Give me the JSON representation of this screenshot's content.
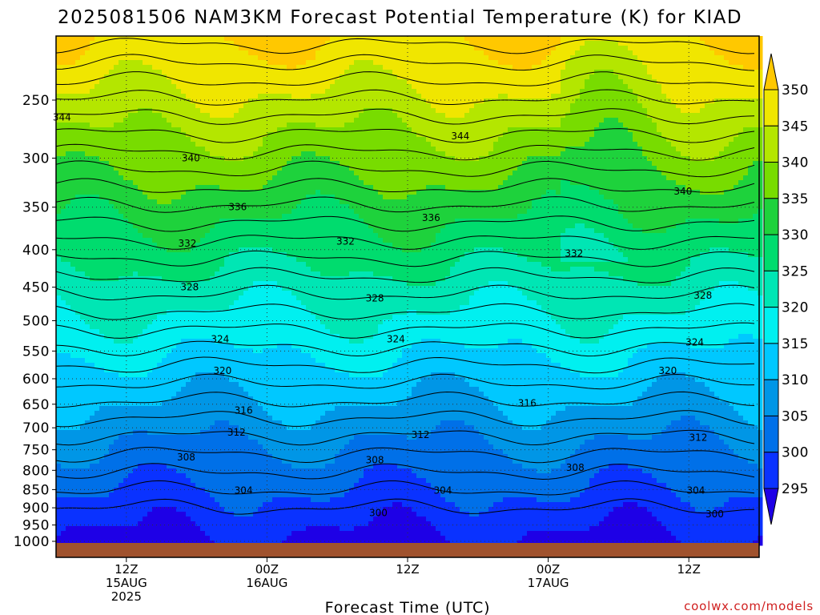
{
  "chart_data": {
    "type": "heatmap",
    "title": "2025081506 NAM3KM Forecast Potential Temperature (K) for KIAD",
    "xlabel": "Forecast Time (UTC)",
    "credit": "coolwx.com/models",
    "y_axis": {
      "scale": "log-pressure",
      "reversed": true,
      "ticks": [
        "250",
        "300",
        "350",
        "400",
        "450",
        "500",
        "550",
        "600",
        "650",
        "700",
        "750",
        "800",
        "850",
        "900",
        "950",
        "1000"
      ],
      "range": [
        200,
        1020
      ]
    },
    "x_axis": {
      "tick_labels": [
        [
          "12Z",
          "15AUG",
          "2025"
        ],
        [
          "00Z",
          "16AUG"
        ],
        [
          "12Z"
        ],
        [
          "00Z",
          "17AUG"
        ],
        [
          "12Z"
        ]
      ],
      "tick_hours": [
        12,
        24,
        36,
        48,
        60
      ],
      "range_hours": [
        6,
        66
      ]
    },
    "colorbar": {
      "ticks": [
        "350",
        "345",
        "340",
        "335",
        "330",
        "325",
        "320",
        "315",
        "310",
        "305",
        "300",
        "295"
      ],
      "levels": [
        295,
        300,
        305,
        310,
        315,
        320,
        325,
        330,
        335,
        340,
        345,
        350
      ],
      "colors": [
        "#1e00e6",
        "#0a32ff",
        "#0070e8",
        "#0096e6",
        "#00c8ff",
        "#00f0f0",
        "#00e6b4",
        "#00dc6e",
        "#1ed23c",
        "#78dc00",
        "#b4e600",
        "#f0e600",
        "#ffc800"
      ]
    },
    "contour_interval_K": 2,
    "contour_labels": [
      {
        "value": "344",
        "hour": 6.5,
        "p": 264
      },
      {
        "value": "344",
        "hour": 40.5,
        "p": 280
      },
      {
        "value": "340",
        "hour": 17.5,
        "p": 300
      },
      {
        "value": "340",
        "hour": 59.5,
        "p": 333
      },
      {
        "value": "336",
        "hour": 21.5,
        "p": 350
      },
      {
        "value": "336",
        "hour": 38,
        "p": 362
      },
      {
        "value": "332",
        "hour": 17.2,
        "p": 392
      },
      {
        "value": "332",
        "hour": 30.7,
        "p": 390
      },
      {
        "value": "332",
        "hour": 50.2,
        "p": 405
      },
      {
        "value": "328",
        "hour": 17.4,
        "p": 450
      },
      {
        "value": "328",
        "hour": 33.2,
        "p": 466
      },
      {
        "value": "328",
        "hour": 61.2,
        "p": 462
      },
      {
        "value": "324",
        "hour": 20,
        "p": 530
      },
      {
        "value": "324",
        "hour": 35,
        "p": 530
      },
      {
        "value": "324",
        "hour": 60.5,
        "p": 535
      },
      {
        "value": "320",
        "hour": 20.2,
        "p": 585
      },
      {
        "value": "320",
        "hour": 58.2,
        "p": 585
      },
      {
        "value": "316",
        "hour": 22,
        "p": 663
      },
      {
        "value": "316",
        "hour": 46.2,
        "p": 648
      },
      {
        "value": "312",
        "hour": 21.4,
        "p": 710
      },
      {
        "value": "312",
        "hour": 37.1,
        "p": 716
      },
      {
        "value": "312",
        "hour": 60.8,
        "p": 722
      },
      {
        "value": "308",
        "hour": 17.1,
        "p": 768
      },
      {
        "value": "308",
        "hour": 33.2,
        "p": 775
      },
      {
        "value": "308",
        "hour": 50.3,
        "p": 793
      },
      {
        "value": "304",
        "hour": 22,
        "p": 852
      },
      {
        "value": "304",
        "hour": 39,
        "p": 852
      },
      {
        "value": "304",
        "hour": 60.6,
        "p": 852
      },
      {
        "value": "300",
        "hour": 33.5,
        "p": 915
      },
      {
        "value": "300",
        "hour": 62.2,
        "p": 918
      }
    ]
  }
}
